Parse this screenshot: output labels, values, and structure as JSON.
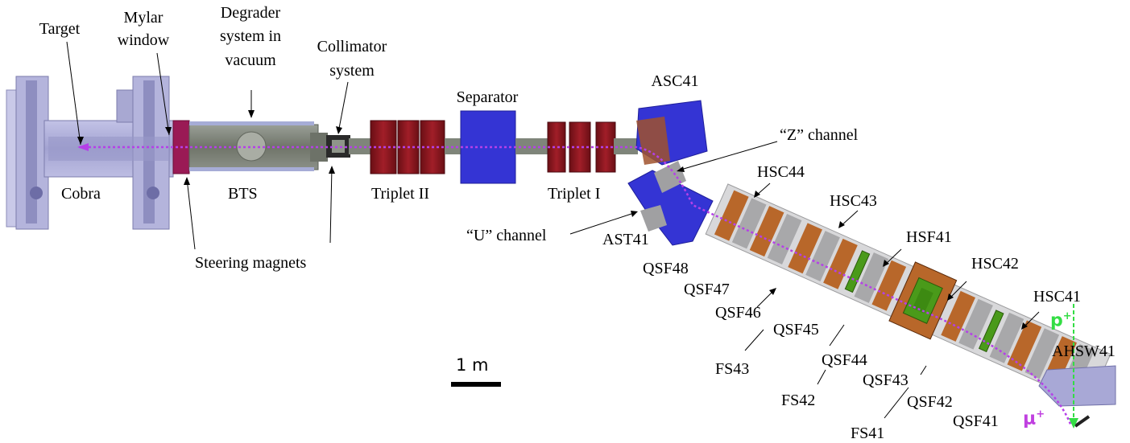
{
  "labels": {
    "target": "Target",
    "mylar_1": "Mylar",
    "mylar_2": "window",
    "degrader_1": "Degrader",
    "degrader_2": "system in",
    "degrader_3": "vacuum",
    "collimator_1": "Collimator",
    "collimator_2": "system",
    "separator": "Separator",
    "asc41": "ASC41",
    "z_channel": "“Z” channel",
    "u_channel": "“U” channel",
    "cobra": "Cobra",
    "bts": "BTS",
    "triplet_ii": "Triplet II",
    "triplet_i": "Triplet I",
    "steering": "Steering magnets",
    "ast41": "AST41",
    "hsc44": "HSC44",
    "hsc43": "HSC43",
    "hsf41": "HSF41",
    "hsc42": "HSC42",
    "hsc41": "HSC41",
    "ahsw41": "AHSW41",
    "qsf48": "QSF48",
    "qsf47": "QSF47",
    "qsf46": "QSF46",
    "qsf45": "QSF45",
    "qsf44": "QSF44",
    "qsf43": "QSF43",
    "qsf42": "QSF42",
    "qsf41": "QSF41",
    "fs43": "FS43",
    "fs42": "FS42",
    "fs41": "FS41",
    "scale": "1 m",
    "proton": "p",
    "muon": "μ",
    "plus": "+"
  },
  "colors": {
    "beam_path": "#b540e8",
    "magnet_red": "#8c1a22",
    "separator_blue": "#3a3ad6",
    "quad_grey": "#a8a8aa",
    "quad_orange": "#b8672a",
    "collimator_green": "#4a9a1a",
    "proton_green": "#33dd44",
    "solenoid_lavender": "#a8a8d6"
  }
}
